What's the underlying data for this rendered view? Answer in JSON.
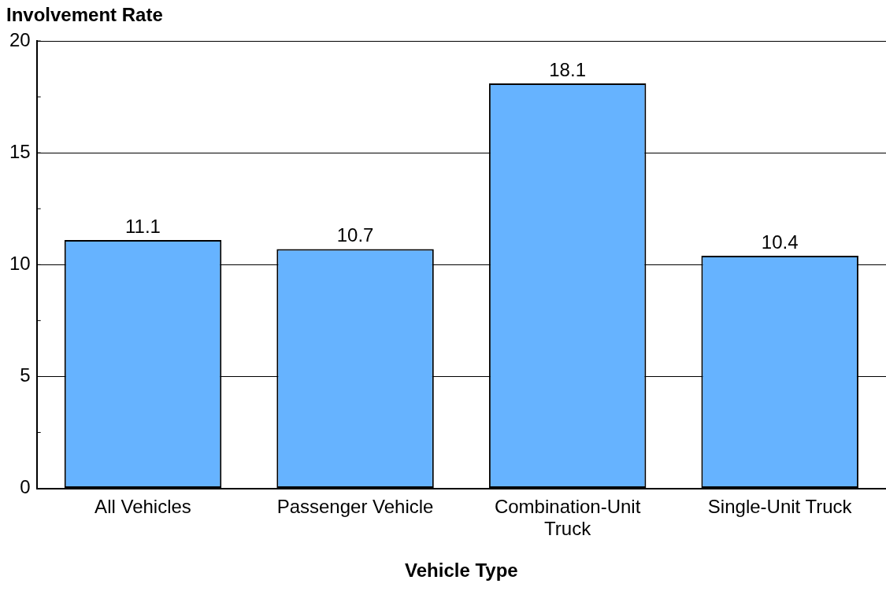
{
  "chart_data": {
    "type": "bar",
    "ylabel": "Involvement Rate",
    "xlabel": "Vehicle Type",
    "categories": [
      "All Vehicles",
      "Passenger Vehicle",
      "Combination-Unit Truck",
      "Single-Unit Truck"
    ],
    "values": [
      11.1,
      10.7,
      18.1,
      10.4
    ],
    "color": "#66b3ff",
    "ylim": [
      0,
      20
    ],
    "yticks": [
      0,
      {
        "value": 2.5,
        "label": null
      },
      5,
      {
        "value": 7.5,
        "label": null
      },
      10,
      {
        "value": 12.5,
        "label": null
      },
      15,
      {
        "value": 17.5,
        "label": null
      },
      20
    ],
    "grid": "y",
    "data_labels": true
  }
}
